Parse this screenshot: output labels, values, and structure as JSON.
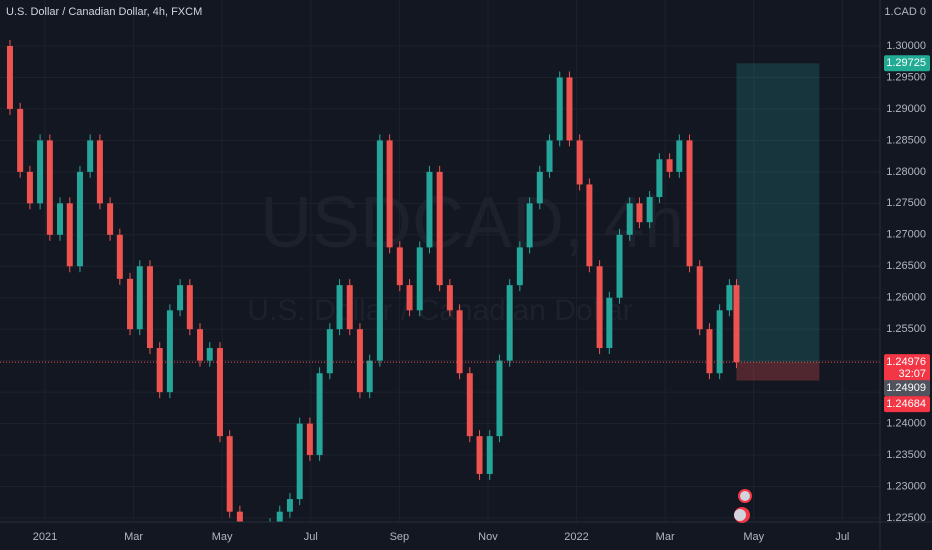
{
  "chart_data": {
    "type": "candlestick",
    "title": "U.S. Dollar / Canadian Dollar, 4h, FXCM",
    "currency_label": "1.CAD 0",
    "watermark": [
      "USDCAD, 4h",
      "U.S. Dollar / Canadian Dollar"
    ],
    "up_color": "#26a69a",
    "down_color": "#ef5350",
    "x": [
      -1.02,
      -0.79,
      -0.56,
      -0.34,
      -0.11,
      0.11,
      0.34,
      0.56,
      0.79,
      1.02,
      1.24,
      1.47,
      1.69,
      1.92,
      2.14,
      2.37,
      2.59,
      2.82,
      3.05,
      3.27,
      3.5,
      3.72,
      3.95,
      4.17,
      4.4,
      4.62,
      4.85,
      5.08,
      5.3,
      5.53,
      5.75,
      5.98,
      6.2,
      6.43,
      6.65,
      6.88,
      7.11,
      7.33,
      7.56,
      7.78,
      8.01,
      8.23,
      8.46,
      8.68,
      8.91,
      9.14,
      9.36,
      9.59,
      9.81,
      10.04,
      10.26,
      10.49,
      10.72,
      10.94,
      11.17,
      11.39,
      11.62,
      11.84,
      12.07,
      12.29,
      12.52,
      12.74,
      12.97,
      13.2,
      13.42,
      13.65,
      13.87,
      14.1,
      14.32,
      14.55,
      14.78,
      15.0,
      15.23,
      15.45,
      15.61
    ],
    "values": [
      1.3,
      1.29,
      1.28,
      1.275,
      1.285,
      1.27,
      1.275,
      1.265,
      1.28,
      1.285,
      1.275,
      1.27,
      1.263,
      1.255,
      1.265,
      1.252,
      1.245,
      1.258,
      1.262,
      1.255,
      1.25,
      1.252,
      1.238,
      1.226,
      1.223,
      1.221,
      1.222,
      1.224,
      1.226,
      1.228,
      1.24,
      1.235,
      1.248,
      1.255,
      1.262,
      1.255,
      1.245,
      1.25,
      1.285,
      1.268,
      1.262,
      1.258,
      1.268,
      1.28,
      1.262,
      1.258,
      1.248,
      1.238,
      1.232,
      1.238,
      1.25,
      1.262,
      1.268,
      1.275,
      1.28,
      1.285,
      1.295,
      1.285,
      1.278,
      1.265,
      1.252,
      1.26,
      1.27,
      1.275,
      1.272,
      1.276,
      1.282,
      1.28,
      1.285,
      1.265,
      1.255,
      1.248,
      1.258,
      1.262,
      1.24976
    ],
    "xlim": [
      -1.015,
      18.85
    ],
    "ylim": [
      1.22436,
      1.30731
    ],
    "xticks": [
      {
        "value": 0,
        "label": "2021"
      },
      {
        "value": 2,
        "label": "Mar"
      },
      {
        "value": 4,
        "label": "May"
      },
      {
        "value": 6,
        "label": "Jul"
      },
      {
        "value": 8,
        "label": "Sep"
      },
      {
        "value": 10,
        "label": "Nov"
      },
      {
        "value": 12,
        "label": "2022"
      },
      {
        "value": 14,
        "label": "Mar"
      },
      {
        "value": 16,
        "label": "May"
      },
      {
        "value": 18,
        "label": "Jul"
      }
    ],
    "yticks": [
      {
        "value": 1.225,
        "label": "1.22500"
      },
      {
        "value": 1.23,
        "label": "1.23000"
      },
      {
        "value": 1.235,
        "label": "1.23500"
      },
      {
        "value": 1.24,
        "label": "1.24000"
      },
      {
        "value": 1.245,
        "label": "1.24500"
      },
      {
        "value": 1.25,
        "label": "1.25000"
      },
      {
        "value": 1.255,
        "label": "1.25500"
      },
      {
        "value": 1.26,
        "label": "1.26000"
      },
      {
        "value": 1.265,
        "label": "1.26500"
      },
      {
        "value": 1.27,
        "label": "1.27000"
      },
      {
        "value": 1.275,
        "label": "1.27500"
      },
      {
        "value": 1.28,
        "label": "1.28000"
      },
      {
        "value": 1.285,
        "label": "1.28500"
      },
      {
        "value": 1.29,
        "label": "1.29000"
      },
      {
        "value": 1.295,
        "label": "1.29500"
      },
      {
        "value": 1.3,
        "label": "1.30000"
      }
    ],
    "grid": true,
    "position": {
      "x_start": 15.61,
      "x_end": 17.48,
      "target": {
        "value": 1.29725,
        "label": "1.29725"
      },
      "entry": {
        "value": 1.24976,
        "label": "1.24976"
      },
      "stop": {
        "value": 1.24684,
        "label": "1.24684"
      }
    },
    "countdown": "32:07",
    "other_price": {
      "value": 1.24909,
      "label": "1.24909"
    }
  }
}
